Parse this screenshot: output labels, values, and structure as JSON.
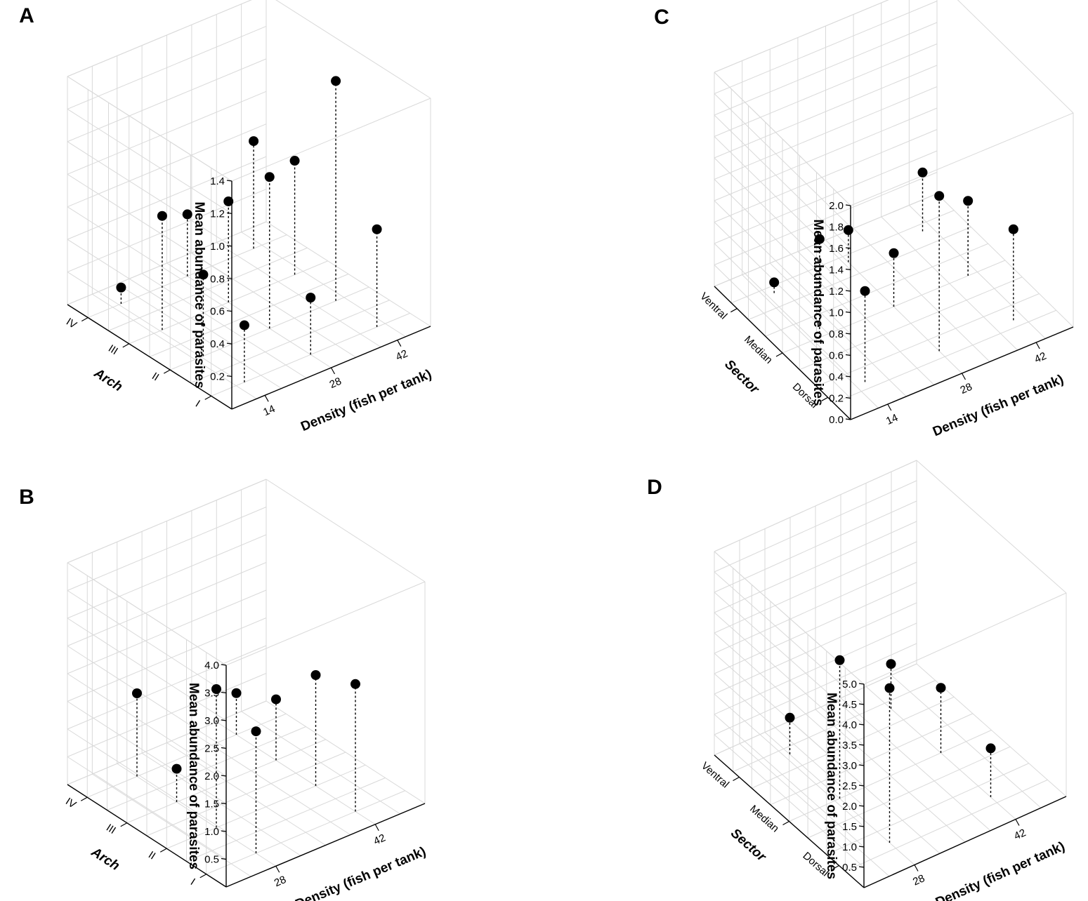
{
  "chart_data": [
    {
      "panel": "A",
      "type": "scatter",
      "subtype": "3d-stem",
      "zlabel": "Mean abundance of parasites",
      "ylabel": "Arch",
      "xlabel": "Density (fish per tank)",
      "x_ticks": [
        "14",
        "28",
        "42"
      ],
      "y_ticks": [
        "I",
        "II",
        "III",
        "IV"
      ],
      "z_ticks": [
        "0.2",
        "0.4",
        "0.6",
        "0.8",
        "1.0",
        "1.2",
        "1.4"
      ],
      "zlim": [
        0,
        1.4
      ],
      "points": [
        {
          "density": "14",
          "arch": "IV",
          "z": 0.1
        },
        {
          "density": "14",
          "arch": "III",
          "z": 0.7
        },
        {
          "density": "14",
          "arch": "II",
          "z": 0.5
        },
        {
          "density": "14",
          "arch": "I",
          "z": 0.35
        },
        {
          "density": "28",
          "arch": "IV",
          "z": 0.38
        },
        {
          "density": "28",
          "arch": "III",
          "z": 0.62
        },
        {
          "density": "28",
          "arch": "II",
          "z": 0.93
        },
        {
          "density": "28",
          "arch": "I",
          "z": 0.35
        },
        {
          "density": "42",
          "arch": "IV",
          "z": 0.66
        },
        {
          "density": "42",
          "arch": "III",
          "z": 0.7
        },
        {
          "density": "42",
          "arch": "II",
          "z": 1.35
        },
        {
          "density": "42",
          "arch": "I",
          "z": 0.6
        }
      ]
    },
    {
      "panel": "B",
      "type": "scatter",
      "subtype": "3d-stem",
      "zlabel": "Mean abundance of parasites",
      "ylabel": "Arch",
      "xlabel": "Density (fish per tank)",
      "x_ticks": [
        "28",
        "42"
      ],
      "y_ticks": [
        "I",
        "II",
        "III",
        "IV"
      ],
      "z_ticks": [
        "0.5",
        "1.0",
        "1.5",
        "2.0",
        "2.5",
        "3.0",
        "3.5",
        "4.0"
      ],
      "zlim": [
        0,
        4.0
      ],
      "points": [
        {
          "density": "28",
          "arch": "IV",
          "z": 1.5
        },
        {
          "density": "28",
          "arch": "III",
          "z": 0.6
        },
        {
          "density": "28",
          "arch": "II",
          "z": 2.5
        },
        {
          "density": "28",
          "arch": "I",
          "z": 2.2
        },
        {
          "density": "42",
          "arch": "IV",
          "z": 0.75
        },
        {
          "density": "42",
          "arch": "III",
          "z": 1.1
        },
        {
          "density": "42",
          "arch": "II",
          "z": 2.0
        },
        {
          "density": "42",
          "arch": "I",
          "z": 2.3
        }
      ]
    },
    {
      "panel": "C",
      "type": "scatter",
      "subtype": "3d-stem",
      "zlabel": "Mean abundance of parasites",
      "ylabel": "Sector",
      "xlabel": "Density (fish per tank)",
      "x_ticks": [
        "14",
        "28",
        "42"
      ],
      "y_ticks": [
        "Dorsal",
        "Median",
        "Ventral"
      ],
      "z_ticks": [
        "0.0",
        "0.2",
        "0.4",
        "0.6",
        "0.8",
        "1.0",
        "1.2",
        "1.4",
        "1.6",
        "1.8",
        "2.0"
      ],
      "zlim": [
        0,
        2.0
      ],
      "points": [
        {
          "density": "14",
          "sector": "Ventral",
          "z": 0.1
        },
        {
          "density": "14",
          "sector": "Median",
          "z": 0.92
        },
        {
          "density": "14",
          "sector": "Dorsal",
          "z": 0.85
        },
        {
          "density": "28",
          "sector": "Ventral",
          "z": 0.3
        },
        {
          "density": "28",
          "sector": "Median",
          "z": 0.5
        },
        {
          "density": "28",
          "sector": "Dorsal",
          "z": 1.45
        },
        {
          "density": "42",
          "sector": "Ventral",
          "z": 0.55
        },
        {
          "density": "42",
          "sector": "Median",
          "z": 0.7
        },
        {
          "density": "42",
          "sector": "Dorsal",
          "z": 0.85
        }
      ]
    },
    {
      "panel": "D",
      "type": "scatter",
      "subtype": "3d-stem",
      "zlabel": "Mean abundance of parasites",
      "ylabel": "Sector",
      "xlabel": "Density (fish per tank)",
      "x_ticks": [
        "28",
        "42"
      ],
      "y_ticks": [
        "Dorsal",
        "Median",
        "Ventral"
      ],
      "z_ticks": [
        "0.5",
        "1.0",
        "1.5",
        "2.0",
        "2.5",
        "3.0",
        "3.5",
        "4.0",
        "4.5",
        "5.0"
      ],
      "zlim": [
        0,
        5.0
      ],
      "points": [
        {
          "density": "28",
          "sector": "Ventral",
          "z": 0.9
        },
        {
          "density": "28",
          "sector": "Median",
          "z": 3.4
        },
        {
          "density": "28",
          "sector": "Dorsal",
          "z": 3.8
        },
        {
          "density": "42",
          "sector": "Ventral",
          "z": 1.1
        },
        {
          "density": "42",
          "sector": "Median",
          "z": 1.6
        },
        {
          "density": "42",
          "sector": "Dorsal",
          "z": 1.2
        }
      ]
    }
  ]
}
